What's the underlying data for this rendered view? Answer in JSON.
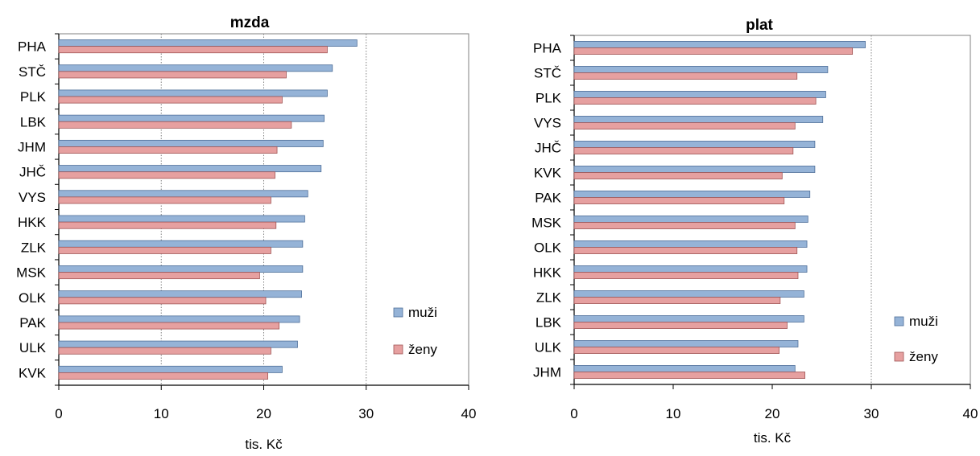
{
  "colors": {
    "muzi": "#95b3d7",
    "zeny": "#e6a0a0",
    "muzi_stroke": "#4f6f99",
    "zeny_stroke": "#a05555",
    "axis": "#000000",
    "grid": "#808080"
  },
  "chart_data": [
    {
      "type": "bar",
      "orientation": "horizontal",
      "title": "mzda",
      "xlabel": "tis. Kč",
      "xlim": [
        0,
        40
      ],
      "xticks": [
        "0",
        "10",
        "20",
        "30",
        "40"
      ],
      "gridlines_x": [
        10,
        20,
        30
      ],
      "legend_position": "right",
      "categories": [
        "PHA",
        "STČ",
        "PLK",
        "LBK",
        "JHM",
        "JHČ",
        "VYS",
        "HKK",
        "ZLK",
        "MSK",
        "OLK",
        "PAK",
        "ULK",
        "KVK"
      ],
      "series": [
        {
          "name": "muži",
          "values": [
            29.1,
            26.7,
            26.2,
            25.9,
            25.8,
            25.6,
            24.3,
            24.0,
            23.8,
            23.8,
            23.7,
            23.5,
            23.3,
            21.8
          ]
        },
        {
          "name": "ženy",
          "values": [
            26.2,
            22.2,
            21.8,
            22.7,
            21.3,
            21.1,
            20.7,
            21.2,
            20.7,
            19.6,
            20.2,
            21.5,
            20.7,
            20.4
          ]
        }
      ]
    },
    {
      "type": "bar",
      "orientation": "horizontal",
      "title": "plat",
      "xlabel": "tis. Kč",
      "xlim": [
        0,
        40
      ],
      "xticks": [
        "0",
        "10",
        "20",
        "30",
        "40"
      ],
      "gridlines_x": [
        30
      ],
      "legend_position": "right",
      "categories": [
        "PHA",
        "STČ",
        "PLK",
        "VYS",
        "JHČ",
        "KVK",
        "PAK",
        "MSK",
        "OLK",
        "HKK",
        "ZLK",
        "LBK",
        "ULK",
        "JHM"
      ],
      "series": [
        {
          "name": "muži",
          "values": [
            29.4,
            25.6,
            25.4,
            25.1,
            24.3,
            24.3,
            23.8,
            23.6,
            23.5,
            23.5,
            23.2,
            23.2,
            22.6,
            22.3
          ]
        },
        {
          "name": "ženy",
          "values": [
            28.1,
            22.5,
            24.4,
            22.3,
            22.1,
            21.0,
            21.2,
            22.3,
            22.5,
            22.6,
            20.8,
            21.5,
            20.7,
            23.3
          ]
        }
      ]
    }
  ]
}
